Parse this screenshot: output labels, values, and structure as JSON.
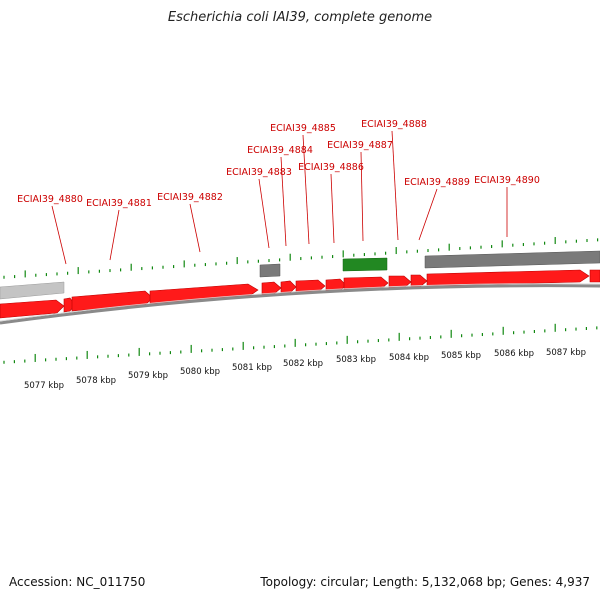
{
  "title": "Escherichia coli IAI39, complete genome",
  "footer": {
    "accession": "Accession: NC_011750",
    "stats": "Topology: circular; Length: 5,132,068 bp; Genes: 4,937"
  },
  "colors": {
    "gene": "#ff0000",
    "gene_edge": "#cc0000",
    "label": "#cc0000",
    "tick": "#118811",
    "rna": "#228822",
    "grey_feature": "#777777",
    "light_feature": "#c0c0c0",
    "backbone": "#888888"
  },
  "gene_labels": [
    "ECIAI39_4880",
    "ECIAI39_4881",
    "ECIAI39_4882",
    "ECIAI39_4883",
    "ECIAI39_4884",
    "ECIAI39_4885",
    "ECIAI39_4886",
    "ECIAI39_4887",
    "ECIAI39_4888",
    "ECIAI39_4889",
    "ECIAI39_4890"
  ],
  "kbp_labels": [
    "5077 kbp",
    "5078 kbp",
    "5079 kbp",
    "5080 kbp",
    "5081 kbp",
    "5082 kbp",
    "5083 kbp",
    "5084 kbp",
    "5085 kbp",
    "5086 kbp",
    "5087 kbp"
  ]
}
